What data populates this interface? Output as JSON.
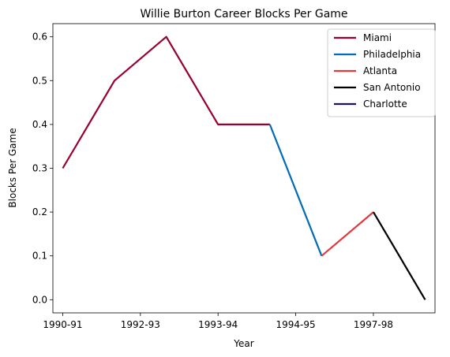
{
  "chart_data": {
    "type": "line",
    "title": "Willie Burton Career Blocks Per Game",
    "xlabel": "Year",
    "ylabel": "Blocks Per Game",
    "x_tick_labels": [
      "1990-91",
      "1992-93",
      "1993-94",
      "1994-95",
      "1997-98"
    ],
    "y_ticks": [
      0.0,
      0.1,
      0.2,
      0.3,
      0.4,
      0.5,
      0.6
    ],
    "y_tick_labels": [
      "0.0",
      "0.1",
      "0.2",
      "0.3",
      "0.4",
      "0.5",
      "0.6"
    ],
    "ylim": [
      -0.03,
      0.63
    ],
    "xlim": [
      -0.19,
      7.19
    ],
    "grid": false,
    "legend_position": "top-right",
    "series": [
      {
        "name": "Miami",
        "color": "#98002E",
        "x": [
          0,
          1,
          2,
          3,
          4
        ],
        "y": [
          0.3,
          0.5,
          0.6,
          0.4,
          0.4
        ]
      },
      {
        "name": "Philadelphia",
        "color": "#006BB6",
        "x": [
          4,
          5
        ],
        "y": [
          0.4,
          0.1
        ]
      },
      {
        "name": "Atlanta",
        "color": "#E03A3E",
        "x": [
          5,
          6
        ],
        "y": [
          0.1,
          0.2
        ]
      },
      {
        "name": "San Antonio",
        "color": "#000000",
        "x": [
          6,
          7
        ],
        "y": [
          0.2,
          0.0
        ]
      },
      {
        "name": "Charlotte",
        "color": "#1D1160",
        "x": [],
        "y": []
      }
    ]
  }
}
